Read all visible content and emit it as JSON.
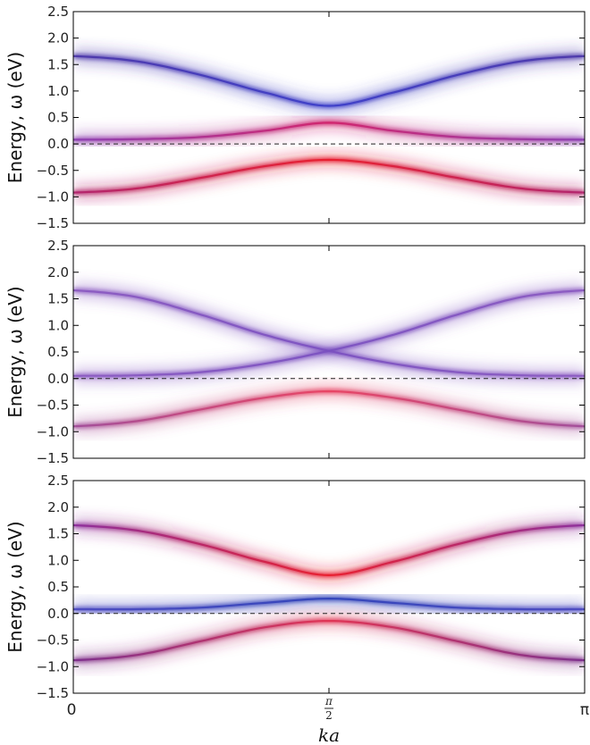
{
  "chart_data": [
    {
      "type": "line",
      "ylabel": "Energy, ω (eV)",
      "ylim": [
        -1.5,
        2.5
      ],
      "yticks": [
        "2.5",
        "2.0",
        "1.5",
        "1.0",
        "0.5",
        "0.0",
        "−0.5",
        "−1.0",
        "−1.5"
      ],
      "xlim": [
        0,
        3.1416
      ],
      "zero_line": "dashed",
      "series": [
        {
          "x": [
            0,
            0.3927,
            0.7854,
            1.1781,
            1.5708,
            1.9635,
            2.3562,
            2.7489,
            3.1416
          ],
          "values": [
            1.66,
            1.56,
            1.3,
            0.97,
            0.72,
            0.97,
            1.3,
            1.56,
            1.66
          ],
          "color": "#4a34a8",
          "color_mid": "#3a3cc8"
        },
        {
          "x": [
            0,
            0.3927,
            0.7854,
            1.1781,
            1.5708,
            1.9635,
            2.3562,
            2.7489,
            3.1416
          ],
          "values": [
            0.08,
            0.09,
            0.13,
            0.25,
            0.4,
            0.25,
            0.13,
            0.09,
            0.08
          ],
          "color": "#8a3ab0",
          "color_mid": "#d0206a"
        },
        {
          "x": [
            0,
            0.3927,
            0.7854,
            1.1781,
            1.5708,
            1.9635,
            2.3562,
            2.7489,
            3.1416
          ],
          "values": [
            -0.92,
            -0.84,
            -0.64,
            -0.42,
            -0.3,
            -0.42,
            -0.64,
            -0.84,
            -0.92
          ],
          "color": "#b0206a",
          "color_mid": "#e81a2a"
        }
      ]
    },
    {
      "type": "line",
      "ylabel": "Energy, ω (eV)",
      "ylim": [
        -1.5,
        2.5
      ],
      "yticks": [
        "2.5",
        "2.0",
        "1.5",
        "1.0",
        "0.5",
        "0.0",
        "−0.5",
        "−1.0",
        "−1.5"
      ],
      "xlim": [
        0,
        3.1416
      ],
      "zero_line": "dashed",
      "series": [
        {
          "x": [
            0,
            0.3927,
            0.7854,
            1.1781,
            1.5708,
            1.9635,
            2.3562,
            2.7489,
            3.1416
          ],
          "values": [
            1.66,
            1.53,
            1.2,
            0.82,
            0.52,
            0.28,
            0.12,
            0.06,
            0.05
          ],
          "color": "#8a58c0",
          "color_mid": "#7a50c0"
        },
        {
          "x": [
            0,
            0.3927,
            0.7854,
            1.1781,
            1.5708,
            1.9635,
            2.3562,
            2.7489,
            3.1416
          ],
          "values": [
            0.05,
            0.06,
            0.12,
            0.28,
            0.52,
            0.82,
            1.2,
            1.53,
            1.66
          ],
          "color": "#8a58c0",
          "color_mid": "#7a50c0"
        },
        {
          "x": [
            0,
            0.3927,
            0.7854,
            1.1781,
            1.5708,
            1.9635,
            2.3562,
            2.7489,
            3.1416
          ],
          "values": [
            -0.9,
            -0.8,
            -0.58,
            -0.36,
            -0.24,
            -0.36,
            -0.58,
            -0.8,
            -0.9
          ],
          "color": "#a04a98",
          "color_mid": "#e84060"
        }
      ]
    },
    {
      "type": "line",
      "ylabel": "Energy, ω (eV)",
      "ylim": [
        -1.5,
        2.5
      ],
      "yticks": [
        "2.5",
        "2.0",
        "1.5",
        "1.0",
        "0.5",
        "0.0",
        "−0.5",
        "−1.0",
        "−1.5"
      ],
      "xlim": [
        0,
        3.1416
      ],
      "xlabel": "ka",
      "xticks": [
        {
          "value": 0,
          "label": "0"
        },
        {
          "value": 1.5708,
          "label": "π/2"
        },
        {
          "value": 3.1416,
          "label": "π"
        }
      ],
      "zero_line": "dashed",
      "series": [
        {
          "x": [
            0,
            0.3927,
            0.7854,
            1.1781,
            1.5708,
            1.9635,
            2.3562,
            2.7489,
            3.1416
          ],
          "values": [
            1.66,
            1.56,
            1.3,
            0.97,
            0.72,
            0.97,
            1.3,
            1.56,
            1.66
          ],
          "color": "#8a2a9a",
          "color_mid": "#e81a2a"
        },
        {
          "x": [
            0,
            0.3927,
            0.7854,
            1.1781,
            1.5708,
            1.9635,
            2.3562,
            2.7489,
            3.1416
          ],
          "values": [
            0.08,
            0.08,
            0.11,
            0.2,
            0.28,
            0.2,
            0.11,
            0.08,
            0.08
          ],
          "color": "#4a48c0",
          "color_mid": "#2e40b8"
        },
        {
          "x": [
            0,
            0.3927,
            0.7854,
            1.1781,
            1.5708,
            1.9635,
            2.3562,
            2.7489,
            3.1416
          ],
          "values": [
            -0.88,
            -0.78,
            -0.52,
            -0.26,
            -0.14,
            -0.26,
            -0.52,
            -0.78,
            -0.88
          ],
          "color": "#7a2a8a",
          "color_mid": "#e03050"
        }
      ]
    }
  ]
}
